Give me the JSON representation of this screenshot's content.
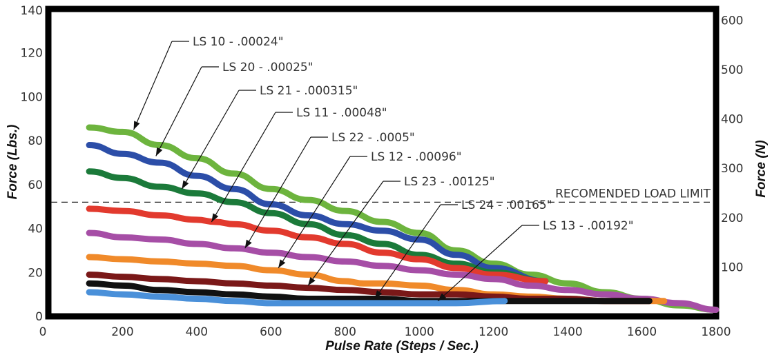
{
  "chart_data": {
    "type": "line",
    "xlabel": "Pulse Rate (Steps / Sec.)",
    "ylabel": "Force (Lbs.)",
    "y2label": "Force (N)",
    "xlim": [
      0,
      1800
    ],
    "ylim": [
      0,
      140
    ],
    "y2lim": [
      0,
      622.75
    ],
    "x_ticks": [
      0,
      200,
      400,
      600,
      800,
      1000,
      1200,
      1400,
      1600,
      1800
    ],
    "y_ticks": [
      0,
      20,
      40,
      60,
      80,
      100,
      120,
      140
    ],
    "y2_ticks": [
      100,
      200,
      300,
      400,
      500,
      600
    ],
    "grid": false,
    "legend": "none",
    "reference_line": {
      "label": "RECOMENDED LOAD LIMIT",
      "y": 52
    },
    "series": [
      {
        "name": "LS 10 - .00024\"",
        "color": "#6db43e",
        "x": [
          110,
          200,
          300,
          400,
          500,
          600,
          700,
          800,
          900,
          1000,
          1100,
          1200,
          1300,
          1400,
          1500,
          1600,
          1700,
          1800
        ],
        "y": [
          86,
          84,
          78,
          72,
          65,
          58,
          53,
          48,
          43,
          38,
          30,
          24,
          19,
          15,
          11,
          8,
          5,
          3
        ]
      },
      {
        "name": "LS 20 - .00025\"",
        "color": "#2c4ea8",
        "x": [
          110,
          200,
          300,
          400,
          500,
          600,
          700,
          800,
          900,
          1000,
          1100,
          1200,
          1340
        ],
        "y": [
          78,
          74,
          70,
          64,
          58,
          51,
          46,
          42,
          39,
          35,
          28,
          22,
          16
        ]
      },
      {
        "name": "LS 21 - .000315\"",
        "color": "#1b7a3a",
        "x": [
          110,
          200,
          300,
          400,
          500,
          600,
          700,
          800,
          900,
          1000,
          1100,
          1200,
          1340
        ],
        "y": [
          66,
          63,
          59,
          56,
          52,
          47,
          42,
          37,
          33,
          28,
          24,
          20,
          16
        ]
      },
      {
        "name": "LS 11 - .00048\"",
        "color": "#e23a2e",
        "x": [
          110,
          200,
          300,
          400,
          450,
          500,
          600,
          700,
          800,
          900,
          1000,
          1100,
          1200,
          1340
        ],
        "y": [
          49,
          48,
          46,
          44,
          43,
          42,
          39,
          36,
          33,
          29,
          26,
          22,
          19,
          16
        ]
      },
      {
        "name": "LS 22 - .0005\"",
        "color": "#a64ea6",
        "x": [
          110,
          200,
          300,
          400,
          500,
          600,
          700,
          800,
          900,
          1000,
          1100,
          1200,
          1300,
          1400,
          1500,
          1600,
          1700,
          1800
        ],
        "y": [
          38,
          36,
          35,
          33,
          31,
          29,
          27,
          25,
          23,
          21,
          19,
          17,
          14,
          12,
          10,
          8,
          6,
          3
        ]
      },
      {
        "name": "LS 12 - .00096\"",
        "color": "#f08a2a",
        "x": [
          110,
          200,
          300,
          400,
          500,
          600,
          700,
          800,
          850,
          900,
          1000,
          1100,
          1200,
          1300,
          1400,
          1500,
          1660
        ],
        "y": [
          27,
          26,
          25,
          24,
          23,
          21,
          19,
          16,
          15,
          15,
          14,
          12,
          10,
          9,
          8,
          7,
          7
        ]
      },
      {
        "name": "LS 23 - .00125\"",
        "color": "#7a1818",
        "x": [
          110,
          200,
          300,
          400,
          500,
          600,
          700,
          800,
          900,
          1000,
          1100,
          1200,
          1300,
          1400,
          1500,
          1620
        ],
        "y": [
          19,
          18,
          17,
          16,
          15,
          14,
          13,
          12,
          11,
          10,
          10,
          9,
          8,
          8,
          7,
          7
        ]
      },
      {
        "name": "LS 24 - .00165\"",
        "color": "#111111",
        "x": [
          110,
          200,
          300,
          400,
          500,
          600,
          700,
          800,
          900,
          1000,
          1100,
          1200,
          1300,
          1400,
          1500,
          1620
        ],
        "y": [
          15,
          14,
          12,
          11,
          10,
          9,
          8,
          8,
          8,
          7,
          7,
          7,
          7,
          7,
          7,
          7
        ]
      },
      {
        "name": "LS 13 - .00192\"",
        "color": "#4a90d9",
        "x": [
          110,
          200,
          300,
          400,
          500,
          600,
          700,
          800,
          900,
          1000,
          1100,
          1230
        ],
        "y": [
          11,
          10,
          9,
          8,
          7,
          6,
          6,
          6,
          6,
          6,
          6,
          7
        ]
      }
    ],
    "annotations": [
      {
        "label": "LS 10 - .00024\"",
        "x": 230,
        "y": 85
      },
      {
        "label": "LS 20 - .00025\"",
        "x": 290,
        "y": 73
      },
      {
        "label": "LS 21 - .000315\"",
        "x": 360,
        "y": 58
      },
      {
        "label": "LS 11 - .00048\"",
        "x": 440,
        "y": 43
      },
      {
        "label": "LS 22 - .0005\"",
        "x": 530,
        "y": 31
      },
      {
        "label": "LS 12 - .00096\"",
        "x": 620,
        "y": 22
      },
      {
        "label": "LS 23 - .00125\"",
        "x": 700,
        "y": 14
      },
      {
        "label": "LS 24 - .00165\"",
        "x": 880,
        "y": 8
      },
      {
        "label": "LS 13 - .00192\"",
        "x": 1050,
        "y": 7
      }
    ]
  }
}
